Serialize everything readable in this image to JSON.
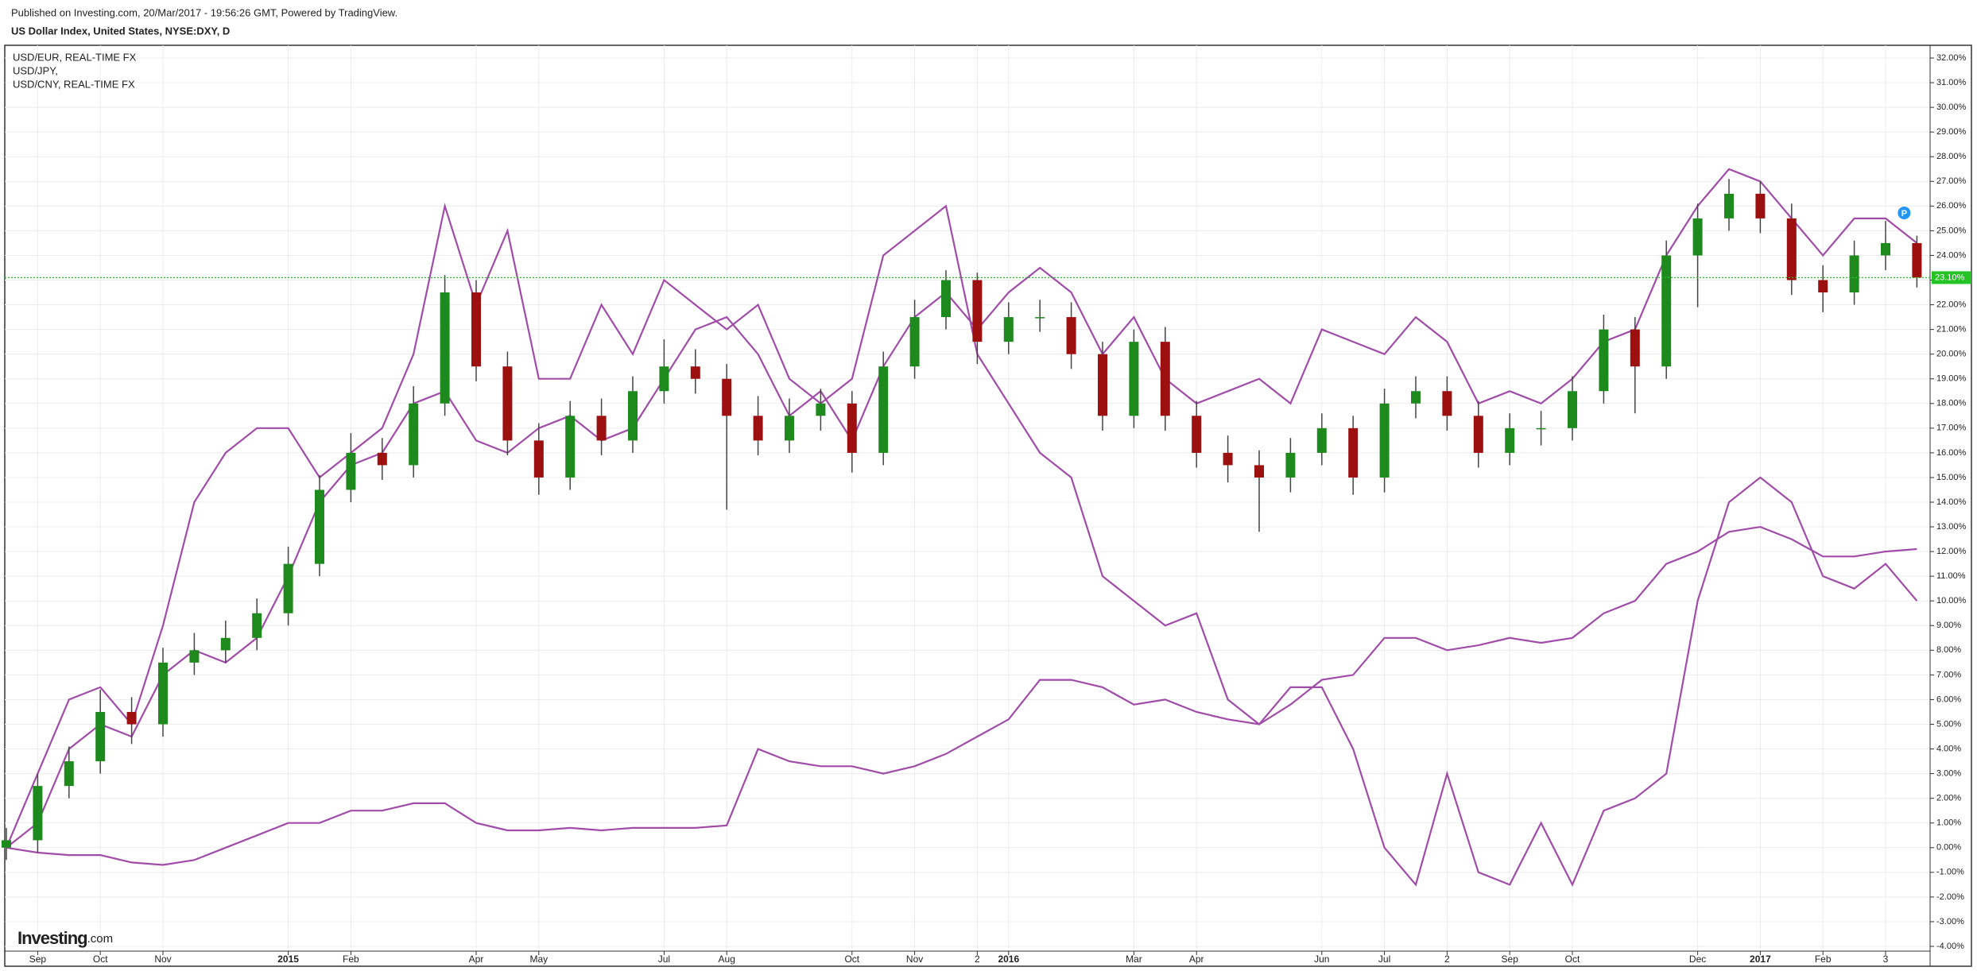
{
  "header": {
    "published": "Published on Investing.com, 20/Mar/2017 - 19:56:26 GMT, Powered by TradingView."
  },
  "logo": {
    "brand": "Investing",
    "suffix": ".com"
  },
  "chart_data": {
    "type": "candlestick",
    "title": "US Dollar Index, United States, NYSE:DXY, D",
    "categories": [
      null,
      "Sep",
      null,
      "Oct",
      null,
      "Nov",
      null,
      null,
      null,
      "2015",
      null,
      "Feb",
      null,
      null,
      null,
      "Apr",
      null,
      "May",
      null,
      null,
      null,
      "Jul",
      null,
      "Aug",
      null,
      null,
      null,
      "Oct",
      null,
      "Nov",
      null,
      "2",
      "2016",
      null,
      null,
      null,
      "Mar",
      null,
      "Apr",
      null,
      null,
      null,
      "Jun",
      null,
      "Jul",
      null,
      "2",
      null,
      "Sep",
      null,
      "Oct",
      null,
      null,
      null,
      "Dec",
      null,
      "2017",
      null,
      "Feb",
      null,
      "3",
      null
    ],
    "open": [
      0,
      0.3,
      2.5,
      3.5,
      5.5,
      5,
      7.5,
      8,
      8.5,
      9.5,
      11.5,
      14.5,
      16,
      15.5,
      18,
      22.5,
      19.5,
      16.5,
      15,
      17.5,
      16.5,
      18.5,
      19.5,
      19,
      17.5,
      16.5,
      17.5,
      18,
      16,
      19.5,
      21.5,
      23,
      20.5,
      21.5,
      21.5,
      20,
      17.5,
      20.5,
      17.5,
      16,
      15.5,
      15,
      16,
      17,
      15,
      18,
      18.5,
      17.5,
      16,
      17,
      17,
      18.5,
      21,
      19.5,
      24,
      25.5,
      26.5,
      25.5,
      23,
      22.5,
      24,
      24.5
    ],
    "high": [
      0.8,
      3.0,
      4.1,
      6.4,
      6.1,
      8.1,
      8.7,
      9.2,
      10.1,
      12.2,
      15.1,
      16.8,
      16.6,
      18.7,
      23.2,
      23.0,
      20.1,
      17.2,
      18.1,
      18.2,
      19.1,
      20.6,
      20.2,
      19.6,
      18.3,
      18.2,
      18.6,
      18.5,
      20.1,
      22.2,
      23.4,
      23.3,
      22.1,
      22.2,
      22.1,
      20.5,
      21.0,
      21.1,
      18.1,
      16.7,
      16.1,
      16.6,
      17.6,
      17.5,
      18.6,
      19.1,
      19.1,
      18.1,
      17.6,
      17.7,
      19.1,
      21.6,
      21.5,
      24.6,
      26.1,
      27.1,
      27.0,
      26.1,
      23.6,
      24.6,
      25.4,
      24.8
    ],
    "low": [
      -0.5,
      -0.2,
      2.0,
      3.0,
      4.2,
      4.5,
      7.0,
      7.5,
      8.0,
      9.0,
      11.0,
      14.0,
      14.9,
      15.0,
      17.5,
      18.9,
      15.9,
      14.3,
      14.5,
      15.9,
      16.0,
      18.0,
      18.4,
      13.7,
      15.9,
      16.0,
      16.9,
      15.2,
      15.5,
      19.0,
      21.0,
      19.6,
      20.0,
      20.9,
      19.4,
      16.9,
      17.0,
      16.9,
      15.4,
      14.8,
      12.8,
      14.4,
      15.5,
      14.3,
      14.4,
      17.4,
      16.9,
      15.4,
      15.5,
      16.3,
      16.5,
      18.0,
      17.6,
      19.0,
      21.9,
      25.0,
      24.9,
      22.4,
      21.7,
      22.0,
      23.4,
      22.7
    ],
    "close": [
      0.3,
      2.5,
      3.5,
      5.5,
      5,
      7.5,
      8,
      8.5,
      9.5,
      11.5,
      14.5,
      16,
      15.5,
      18,
      22.5,
      19.5,
      16.5,
      15,
      17.5,
      16.5,
      18.5,
      19.5,
      19,
      17.5,
      16.5,
      17.5,
      18,
      16,
      19.5,
      21.5,
      23,
      20.5,
      21.5,
      21.5,
      20,
      17.5,
      20.5,
      17.5,
      16,
      15.5,
      15,
      16,
      17,
      15,
      18,
      18.5,
      17.5,
      16,
      17,
      17,
      18.5,
      21,
      19.5,
      24,
      25.5,
      26.5,
      25.5,
      23,
      22.5,
      24,
      24.5,
      23.1
    ],
    "up_color": "#1e8a1e",
    "down_color": "#9c1010",
    "wick_color": "#444444",
    "series": [
      {
        "name": "USD/EUR, REAL-TIME FX",
        "color": "#a04ca8",
        "values": [
          0,
          1,
          4,
          5,
          4.5,
          7,
          8,
          7.5,
          8.5,
          11,
          14,
          15.5,
          16,
          18,
          18.5,
          16.5,
          16,
          17,
          17.5,
          16.5,
          17,
          19,
          21,
          21.5,
          20,
          17.5,
          18.5,
          16.5,
          19.5,
          21.5,
          22.5,
          21,
          22.5,
          23.5,
          22.5,
          20,
          21.5,
          19,
          18,
          18.5,
          19,
          18,
          21,
          20.5,
          20,
          21.5,
          20.5,
          18,
          18.5,
          18,
          19,
          20.5,
          21,
          24,
          26,
          27.5,
          27,
          25.5,
          24,
          25.5,
          25.5,
          24.5
        ]
      },
      {
        "name": "USD/JPY,",
        "color": "#a04ca8",
        "values": [
          0,
          3,
          6,
          6.5,
          5,
          9,
          14,
          16,
          17,
          17,
          15,
          16,
          17,
          20,
          26,
          22,
          25,
          19,
          19,
          22,
          20,
          23,
          22,
          21,
          22,
          19,
          18,
          19,
          24,
          25,
          26,
          20,
          18,
          16,
          15,
          11,
          10,
          9,
          9.5,
          6,
          5,
          6.5,
          6.5,
          4,
          0,
          -1.5,
          3,
          -1,
          -1.5,
          1,
          -1.5,
          1.5,
          2,
          3,
          10,
          14,
          15,
          14,
          11,
          10.5,
          11.5,
          10
        ]
      },
      {
        "name": "USD/CNY, REAL-TIME FX",
        "color": "#a04ca8",
        "values": [
          0,
          -0.2,
          -0.3,
          -0.3,
          -0.6,
          -0.7,
          -0.5,
          0,
          0.5,
          1,
          1,
          1.5,
          1.5,
          1.8,
          1.8,
          1,
          0.7,
          0.7,
          0.8,
          0.7,
          0.8,
          0.8,
          0.8,
          0.9,
          4,
          3.5,
          3.3,
          3.3,
          3.0,
          3.3,
          3.8,
          4.5,
          5.2,
          6.8,
          6.8,
          6.5,
          5.8,
          6,
          5.5,
          5.2,
          5,
          5.8,
          6.8,
          7,
          8.5,
          8.5,
          8,
          8.2,
          8.5,
          8.3,
          8.5,
          9.5,
          10,
          11.5,
          12,
          12.8,
          13,
          12.5,
          11.8,
          11.8,
          12,
          12.1
        ]
      }
    ],
    "ylim": [
      -4,
      32
    ],
    "yticks": [
      {
        "value": 32,
        "label": "32.00%"
      },
      {
        "value": 31,
        "label": "31.00%"
      },
      {
        "value": 30,
        "label": "30.00%"
      },
      {
        "value": 29,
        "label": "29.00%"
      },
      {
        "value": 28,
        "label": "28.00%"
      },
      {
        "value": 27,
        "label": "27.00%"
      },
      {
        "value": 26,
        "label": "26.00%"
      },
      {
        "value": 25,
        "label": "25.00%"
      },
      {
        "value": 24,
        "label": "24.00%"
      },
      {
        "value": 23,
        "label": "23.00%"
      },
      {
        "value": 22,
        "label": "22.00%"
      },
      {
        "value": 21,
        "label": "21.00%"
      },
      {
        "value": 20,
        "label": "20.00%"
      },
      {
        "value": 19,
        "label": "19.00%"
      },
      {
        "value": 18,
        "label": "18.00%"
      },
      {
        "value": 17,
        "label": "17.00%"
      },
      {
        "value": 16,
        "label": "16.00%"
      },
      {
        "value": 15,
        "label": "15.00%"
      },
      {
        "value": 14,
        "label": "14.00%"
      },
      {
        "value": 13,
        "label": "13.00%"
      },
      {
        "value": 12,
        "label": "12.00%"
      },
      {
        "value": 11,
        "label": "11.00%"
      },
      {
        "value": 10,
        "label": "10.00%"
      },
      {
        "value": 9,
        "label": "9.00%"
      },
      {
        "value": 8,
        "label": "8.00%"
      },
      {
        "value": 7,
        "label": "7.00%"
      },
      {
        "value": 6,
        "label": "6.00%"
      },
      {
        "value": 5,
        "label": "5.00%"
      },
      {
        "value": 4,
        "label": "4.00%"
      },
      {
        "value": 3,
        "label": "3.00%"
      },
      {
        "value": 2,
        "label": "2.00%"
      },
      {
        "value": 1,
        "label": "1.00%"
      },
      {
        "value": 0,
        "label": "0.00%"
      },
      {
        "value": -1,
        "label": "-1.00%"
      },
      {
        "value": -2,
        "label": "-2.00%"
      },
      {
        "value": -3,
        "label": "-3.00%"
      },
      {
        "value": -4,
        "label": "-4.00%"
      }
    ],
    "grid": true,
    "current_level": {
      "value": 23.1,
      "label": "23.10%",
      "color": "#22c322"
    },
    "marker": {
      "label": "P",
      "color": "#2196f3"
    }
  }
}
